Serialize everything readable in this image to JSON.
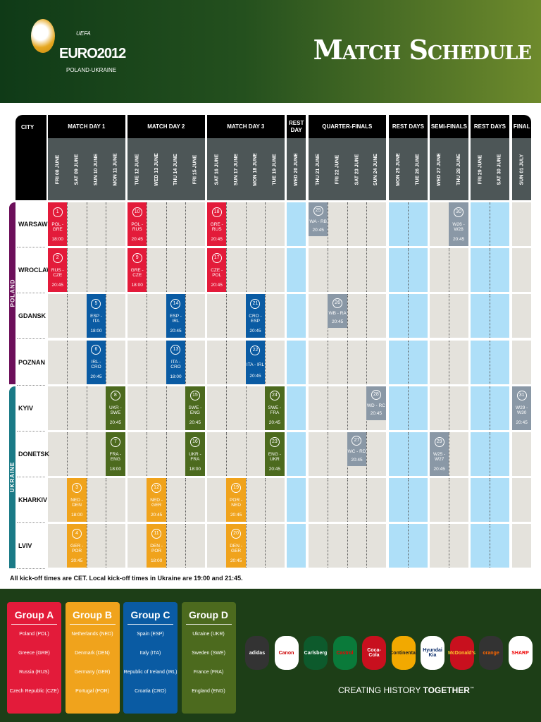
{
  "header": {
    "uefa": "UEFA",
    "brand": "EURO2012",
    "host": "POLAND-UKRAINE",
    "title": "Match Schedule"
  },
  "colors": {
    "A": "#e31b3a",
    "B": "#f0a31c",
    "C": "#0a5ba3",
    "D": "#4c6a1e",
    "KO": "#8a98a6",
    "poland": "#6c0f5a",
    "ukraine": "#1a7a86",
    "rest": "#aedff8",
    "cell": "#e4e2dc"
  },
  "schedule": {
    "city_label": "CITY",
    "blocks": [
      {
        "label": "MATCH DAY 1",
        "dates": [
          "FRI 08 JUNE",
          "SAT 09 JUNE",
          "SUN 10 JUNE",
          "MON 11 JUNE"
        ]
      },
      {
        "label": "MATCH DAY 2",
        "dates": [
          "TUE 12 JUNE",
          "WED 13 JUNE",
          "THU 14 JUNE",
          "FRI 15 JUNE"
        ]
      },
      {
        "label": "MATCH DAY 3",
        "dates": [
          "SAT 16 JUNE",
          "SUN 17 JUNE",
          "MON 18 JUNE",
          "TUE 19 JUNE"
        ]
      },
      {
        "label": "REST DAY",
        "dates": [
          "WED 20 JUNE"
        ],
        "rest": true
      },
      {
        "label": "QUARTER-FINALS",
        "dates": [
          "THU 21 JUNE",
          "FRI 22 JUNE",
          "SAT 23 JUNE",
          "SUN 24 JUNE"
        ]
      },
      {
        "label": "REST DAYS",
        "dates": [
          "MON 25 JUNE",
          "TUE 26 JUNE"
        ],
        "rest": true
      },
      {
        "label": "SEMI-FINALS",
        "dates": [
          "WED 27 JUNE",
          "THU 28 JUNE"
        ]
      },
      {
        "label": "REST DAYS",
        "dates": [
          "FRI 29 JUNE",
          "SAT 30 JUNE"
        ],
        "rest": true
      },
      {
        "label": "FINAL",
        "dates": [
          "SUN 01 JULY"
        ]
      }
    ],
    "countries": [
      {
        "name": "POLAND",
        "key": "poland",
        "rows": 4
      },
      {
        "name": "UKRAINE",
        "key": "ukraine",
        "rows": 4
      }
    ],
    "cities": [
      "WARSAW",
      "WROCLAW",
      "GDANSK",
      "POZNAN",
      "KYIV",
      "DONETSK",
      "KHARKIV",
      "LVIV"
    ],
    "matches": [
      {
        "num": "1",
        "city": 0,
        "col": 0,
        "teams": "POL - GRE",
        "time": "18:00",
        "g": "A"
      },
      {
        "num": "10",
        "city": 0,
        "col": 4,
        "teams": "POL - RUS",
        "time": "20:45",
        "g": "A"
      },
      {
        "num": "18",
        "city": 0,
        "col": 8,
        "teams": "GRE - RUS",
        "time": "20:45",
        "g": "A"
      },
      {
        "num": "25",
        "city": 0,
        "col": 13,
        "teams": "WA - RB",
        "time": "20:45",
        "g": "KO"
      },
      {
        "num": "30",
        "city": 0,
        "col": 20,
        "teams": "W26 - W28",
        "time": "20:45",
        "g": "KO"
      },
      {
        "num": "2",
        "city": 1,
        "col": 0,
        "teams": "RUS - CZE",
        "time": "20:45",
        "g": "A"
      },
      {
        "num": "9",
        "city": 1,
        "col": 4,
        "teams": "GRE - CZE",
        "time": "18:00",
        "g": "A"
      },
      {
        "num": "17",
        "city": 1,
        "col": 8,
        "teams": "CZE - POL",
        "time": "20:45",
        "g": "A"
      },
      {
        "num": "5",
        "city": 2,
        "col": 2,
        "teams": "ESP - ITA",
        "time": "18:00",
        "g": "C"
      },
      {
        "num": "14",
        "city": 2,
        "col": 6,
        "teams": "ESP - IRL",
        "time": "20:45",
        "g": "C"
      },
      {
        "num": "21",
        "city": 2,
        "col": 10,
        "teams": "CRO - ESP",
        "time": "20:45",
        "g": "C"
      },
      {
        "num": "26",
        "city": 2,
        "col": 14,
        "teams": "WB - RA",
        "time": "20:45",
        "g": "KO"
      },
      {
        "num": "6",
        "city": 3,
        "col": 2,
        "teams": "IRL - CRO",
        "time": "20:45",
        "g": "C"
      },
      {
        "num": "13",
        "city": 3,
        "col": 6,
        "teams": "ITA - CRO",
        "time": "18:00",
        "g": "C"
      },
      {
        "num": "22",
        "city": 3,
        "col": 10,
        "teams": "ITA - IRL",
        "time": "20:45",
        "g": "C"
      },
      {
        "num": "8",
        "city": 4,
        "col": 3,
        "teams": "UKR - SWE",
        "time": "20:45",
        "g": "D"
      },
      {
        "num": "15",
        "city": 4,
        "col": 7,
        "teams": "SWE - ENG",
        "time": "20:45",
        "g": "D"
      },
      {
        "num": "24",
        "city": 4,
        "col": 11,
        "teams": "SWE - FRA",
        "time": "20:45",
        "g": "D"
      },
      {
        "num": "28",
        "city": 4,
        "col": 16,
        "teams": "WD - RC",
        "time": "20:45",
        "g": "KO"
      },
      {
        "num": "31",
        "city": 4,
        "col": 23,
        "teams": "W29 - W30",
        "time": "20:45",
        "g": "KO"
      },
      {
        "num": "7",
        "city": 5,
        "col": 3,
        "teams": "FRA - ENG",
        "time": "18:00",
        "g": "D"
      },
      {
        "num": "16",
        "city": 5,
        "col": 7,
        "teams": "UKR - FRA",
        "time": "18:00",
        "g": "D"
      },
      {
        "num": "23",
        "city": 5,
        "col": 11,
        "teams": "ENG - UKR",
        "time": "20:45",
        "g": "D"
      },
      {
        "num": "27",
        "city": 5,
        "col": 15,
        "teams": "WC - RD",
        "time": "20:45",
        "g": "KO"
      },
      {
        "num": "29",
        "city": 5,
        "col": 19,
        "teams": "W25 - W27",
        "time": "20:45",
        "g": "KO"
      },
      {
        "num": "3",
        "city": 6,
        "col": 1,
        "teams": "NED - DEN",
        "time": "18:00",
        "g": "B"
      },
      {
        "num": "12",
        "city": 6,
        "col": 5,
        "teams": "NED - GER",
        "time": "20:45",
        "g": "B"
      },
      {
        "num": "19",
        "city": 6,
        "col": 9,
        "teams": "POR - NED",
        "time": "20:45",
        "g": "B"
      },
      {
        "num": "4",
        "city": 7,
        "col": 1,
        "teams": "GER - POR",
        "time": "20:45",
        "g": "B"
      },
      {
        "num": "11",
        "city": 7,
        "col": 5,
        "teams": "DEN - POR",
        "time": "18:00",
        "g": "B"
      },
      {
        "num": "20",
        "city": 7,
        "col": 9,
        "teams": "DEN - GER",
        "time": "20:45",
        "g": "B"
      }
    ],
    "note": "All kick-off times are CET. Local kick-off times in Ukraine are 19:00 and 21:45."
  },
  "groups": [
    {
      "name": "Group A",
      "key": "A",
      "teams": [
        "Poland (POL)",
        "Greece (GRE)",
        "Russia (RUS)",
        "Czech Republic (CZE)"
      ]
    },
    {
      "name": "Group B",
      "key": "B",
      "teams": [
        "Netherlands (NED)",
        "Denmark (DEN)",
        "Germany (GER)",
        "Portugal (POR)"
      ]
    },
    {
      "name": "Group C",
      "key": "C",
      "teams": [
        "Spain (ESP)",
        "Italy (ITA)",
        "Republic of Ireland (IRL)",
        "Croatia (CRO)"
      ]
    },
    {
      "name": "Group D",
      "key": "D",
      "teams": [
        "Ukraine (UKR)",
        "Sweden (SWE)",
        "France (FRA)",
        "England (ENG)"
      ]
    }
  ],
  "sponsors": [
    {
      "name": "adidas",
      "bg": "#333",
      "fg": "#fff"
    },
    {
      "name": "Canon",
      "bg": "#fff",
      "fg": "#c00"
    },
    {
      "name": "Carlsberg",
      "bg": "#0d5a2c",
      "fg": "#fff"
    },
    {
      "name": "Castrol",
      "bg": "#0a7a3a",
      "fg": "#e00"
    },
    {
      "name": "Coca-Cola",
      "bg": "#c8101e",
      "fg": "#fff"
    },
    {
      "name": "Continental",
      "bg": "#f2a900",
      "fg": "#222"
    },
    {
      "name": "Hyundai Kia",
      "bg": "#fff",
      "fg": "#0a2c6a"
    },
    {
      "name": "McDonald's",
      "bg": "#c8101e",
      "fg": "#ffc72c"
    },
    {
      "name": "orange",
      "bg": "#333",
      "fg": "#f60"
    },
    {
      "name": "SHARP",
      "bg": "#fff",
      "fg": "#e00"
    }
  ],
  "tagline": {
    "light": "CREATING HISTORY ",
    "bold": "TOGETHER",
    "tm": "™"
  }
}
